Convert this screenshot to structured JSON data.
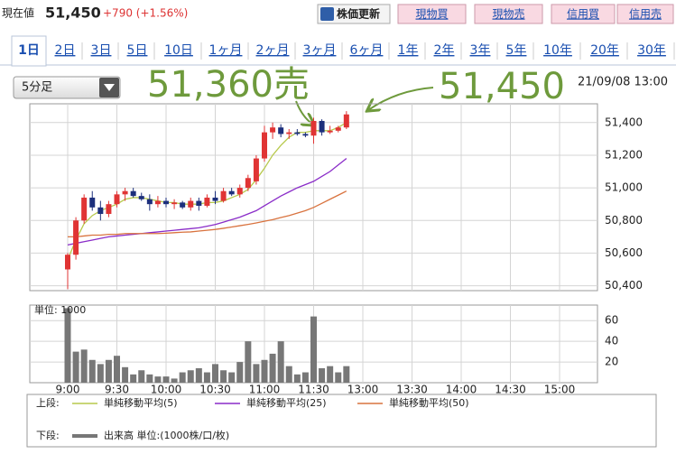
{
  "header": {
    "label": "現在値",
    "price": "51,450",
    "change": "+790 (+1.56%)",
    "buttons": [
      "株価更新",
      "現物買",
      "現物売",
      "信用買",
      "信用売"
    ]
  },
  "tabs": [
    "1日",
    "2日",
    "3日",
    "5日",
    "10日",
    "1ヶ月",
    "2ヶ月",
    "3ヶ月",
    "6ヶ月",
    "1年",
    "2年",
    "3年",
    "5年",
    "10年",
    "20年",
    "30年"
  ],
  "select": "5分足",
  "timestamp": "21/09/08 13:00",
  "chart_data": {
    "type": "candlestick",
    "annotations": [
      "51,360売",
      "51,450"
    ],
    "categories": [
      "9:00",
      null,
      null,
      null,
      null,
      null,
      "9:30",
      null,
      null,
      null,
      null,
      null,
      "10:00",
      null,
      null,
      null,
      null,
      null,
      "10:30",
      null,
      null,
      null,
      null,
      null,
      "11:00",
      null,
      null,
      null,
      null,
      null,
      "11:30",
      null,
      null,
      null,
      null,
      null,
      "13:00",
      null,
      null,
      null,
      null,
      null,
      "13:30",
      null,
      null,
      null,
      null,
      null,
      "14:00",
      null,
      null,
      null,
      null,
      null,
      "14:30",
      null,
      null,
      null,
      null,
      null,
      "15:00"
    ],
    "up_color": "#e03434",
    "down_color": "#1c2f7c",
    "open": [
      50500,
      50590,
      50800,
      50940,
      50880,
      50840,
      50900,
      50960,
      50980,
      50950,
      50930,
      50900,
      50920,
      50900,
      50910,
      50880,
      50920,
      50890,
      50940,
      50920,
      50980,
      50960,
      51000,
      51040,
      51180,
      51340,
      51370,
      51330,
      51340,
      51330,
      51320,
      51410,
      51340,
      51350,
      51370,
      null,
      null,
      null,
      null,
      null,
      null,
      null,
      null,
      null,
      null,
      null,
      null,
      null,
      null,
      null,
      null,
      null,
      null,
      null,
      null,
      null,
      null,
      null,
      null,
      null,
      null
    ],
    "high": [
      50600,
      50820,
      50960,
      50980,
      50920,
      50920,
      50980,
      51000,
      51000,
      50970,
      50960,
      50950,
      50940,
      50930,
      50920,
      50940,
      50940,
      50960,
      50980,
      51000,
      51000,
      51020,
      51080,
      51200,
      51380,
      51400,
      51390,
      51360,
      51360,
      51340,
      51430,
      51420,
      51380,
      51380,
      51470,
      null,
      null,
      null,
      null,
      null,
      null,
      null,
      null,
      null,
      null,
      null,
      null,
      null,
      null,
      null,
      null,
      null,
      null,
      null,
      null,
      null,
      null,
      null,
      null,
      null,
      null
    ],
    "low": [
      50380,
      50560,
      50780,
      50860,
      50800,
      50820,
      50880,
      50920,
      50940,
      50920,
      50860,
      50880,
      50880,
      50870,
      50870,
      50860,
      50860,
      50880,
      50900,
      50910,
      50950,
      50940,
      50980,
      51020,
      51160,
      51300,
      51310,
      51300,
      51320,
      51310,
      51270,
      51320,
      51330,
      51340,
      51360,
      null,
      null,
      null,
      null,
      null,
      null,
      null,
      null,
      null,
      null,
      null,
      null,
      null,
      null,
      null,
      null,
      null,
      null,
      null,
      null,
      null,
      null,
      null,
      null,
      null,
      null
    ],
    "close": [
      50590,
      50800,
      50940,
      50880,
      50840,
      50900,
      50960,
      50980,
      50950,
      50930,
      50900,
      50920,
      50900,
      50910,
      50880,
      50920,
      50890,
      50940,
      50920,
      50980,
      50960,
      51000,
      51060,
      51180,
      51340,
      51370,
      51330,
      51340,
      51330,
      51320,
      51410,
      51340,
      51350,
      51370,
      51450,
      null,
      null,
      null,
      null,
      null,
      null,
      null,
      null,
      null,
      null,
      null,
      null,
      null,
      null,
      null,
      null,
      null,
      null,
      null,
      null,
      null,
      null,
      null,
      null,
      null,
      null
    ],
    "series": [
      {
        "name": "単純移動平均(5)",
        "color": "#b7c94c",
        "values": [
          50560,
          50680,
          50780,
          50830,
          50860,
          50880,
          50900,
          50930,
          50940,
          50940,
          50930,
          50920,
          50910,
          50910,
          50900,
          50900,
          50900,
          50910,
          50910,
          50920,
          50940,
          50960,
          50990,
          51050,
          51120,
          51200,
          51260,
          51310,
          51340,
          51340,
          51350,
          51350,
          51350,
          51370,
          51400,
          null,
          null,
          null,
          null,
          null,
          null,
          null,
          null,
          null,
          null,
          null,
          null,
          null,
          null,
          null,
          null,
          null,
          null,
          null,
          null,
          null,
          null,
          null,
          null,
          null,
          null
        ]
      },
      {
        "name": "単純移動平均(25)",
        "color": "#8a2cc8",
        "values": [
          50650,
          50660,
          50670,
          50680,
          50690,
          50700,
          50705,
          50710,
          50715,
          50720,
          50725,
          50730,
          50735,
          50740,
          50745,
          50750,
          50755,
          50765,
          50775,
          50790,
          50805,
          50820,
          50840,
          50860,
          50890,
          50920,
          50950,
          50975,
          51000,
          51020,
          51040,
          51070,
          51100,
          51140,
          51180,
          null,
          null,
          null,
          null,
          null,
          null,
          null,
          null,
          null,
          null,
          null,
          null,
          null,
          null,
          null,
          null,
          null,
          null,
          null,
          null,
          null,
          null,
          null,
          null,
          null,
          null
        ]
      },
      {
        "name": "単純移動平均(50)",
        "color": "#d9733f",
        "values": [
          50700,
          50700,
          50705,
          50710,
          50710,
          50715,
          50715,
          50720,
          50720,
          50720,
          50720,
          50720,
          50722,
          50725,
          50728,
          50730,
          50735,
          50740,
          50745,
          50752,
          50760,
          50768,
          50776,
          50785,
          50795,
          50805,
          50818,
          50830,
          50845,
          50860,
          50880,
          50905,
          50930,
          50955,
          50980,
          null,
          null,
          null,
          null,
          null,
          null,
          null,
          null,
          null,
          null,
          null,
          null,
          null,
          null,
          null,
          null,
          null,
          null,
          null,
          null,
          null,
          null,
          null,
          null,
          null,
          null
        ]
      }
    ],
    "legend_title": "上段:",
    "ylim": [
      50370,
      51515
    ],
    "yticks": [
      {
        "value": 50400,
        "label": "50,400"
      },
      {
        "value": 50600,
        "label": "50,600"
      },
      {
        "value": 50800,
        "label": "50,800"
      },
      {
        "value": 51000,
        "label": "51,000"
      },
      {
        "value": 51200,
        "label": "51,200"
      },
      {
        "value": 51400,
        "label": "51,400"
      }
    ],
    "grid": true,
    "volume": {
      "name": "出来高 単位:(1000株/口/枚)",
      "color": "#777777",
      "legend_title": "下段:",
      "unit_label": "単位: 1000",
      "ylim": [
        0,
        75
      ],
      "yticks": [
        20,
        40,
        60
      ],
      "values": [
        72,
        30,
        32,
        22,
        18,
        22,
        26,
        15,
        8,
        12,
        8,
        6,
        6,
        4,
        10,
        12,
        14,
        10,
        18,
        12,
        10,
        20,
        40,
        18,
        22,
        28,
        40,
        16,
        8,
        10,
        64,
        14,
        16,
        10,
        16,
        null,
        null,
        null,
        null,
        null,
        null,
        null,
        null,
        null,
        null,
        null,
        null,
        null,
        null,
        null,
        null,
        null,
        null,
        null,
        null,
        null,
        null,
        null,
        null,
        null,
        null
      ]
    }
  }
}
